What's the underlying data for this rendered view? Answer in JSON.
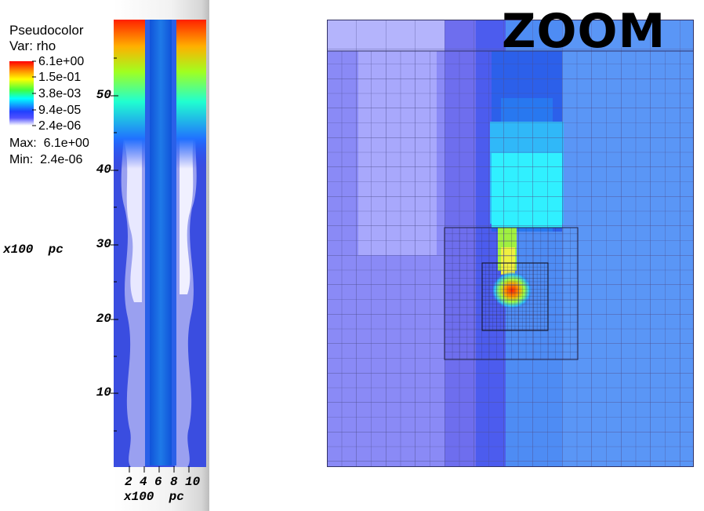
{
  "legend": {
    "title": "Pseudocolor",
    "variable": "Var: rho",
    "ticks": [
      "6.1e+00",
      "1.5e-01",
      "3.8e-03",
      "9.4e-05",
      "2.4e-06"
    ],
    "max_label": "Max:  6.1e+00",
    "min_label": "Min:  2.4e-06"
  },
  "left_plot": {
    "y_ticks": [
      "50",
      "40",
      "30",
      "20",
      "10"
    ],
    "x_ticks": [
      "2",
      "4",
      "6",
      "8",
      "10"
    ],
    "y_axis_title": "x100  pc",
    "x_axis_title": "x100  pc"
  },
  "right_panel": {
    "label": "ZOOM"
  },
  "colors": {
    "background_shade": "#bdbdbd",
    "colormap_high": "#ff0000",
    "colormap_low": "#ffffff",
    "jet_core": "#1e6fe0"
  }
}
